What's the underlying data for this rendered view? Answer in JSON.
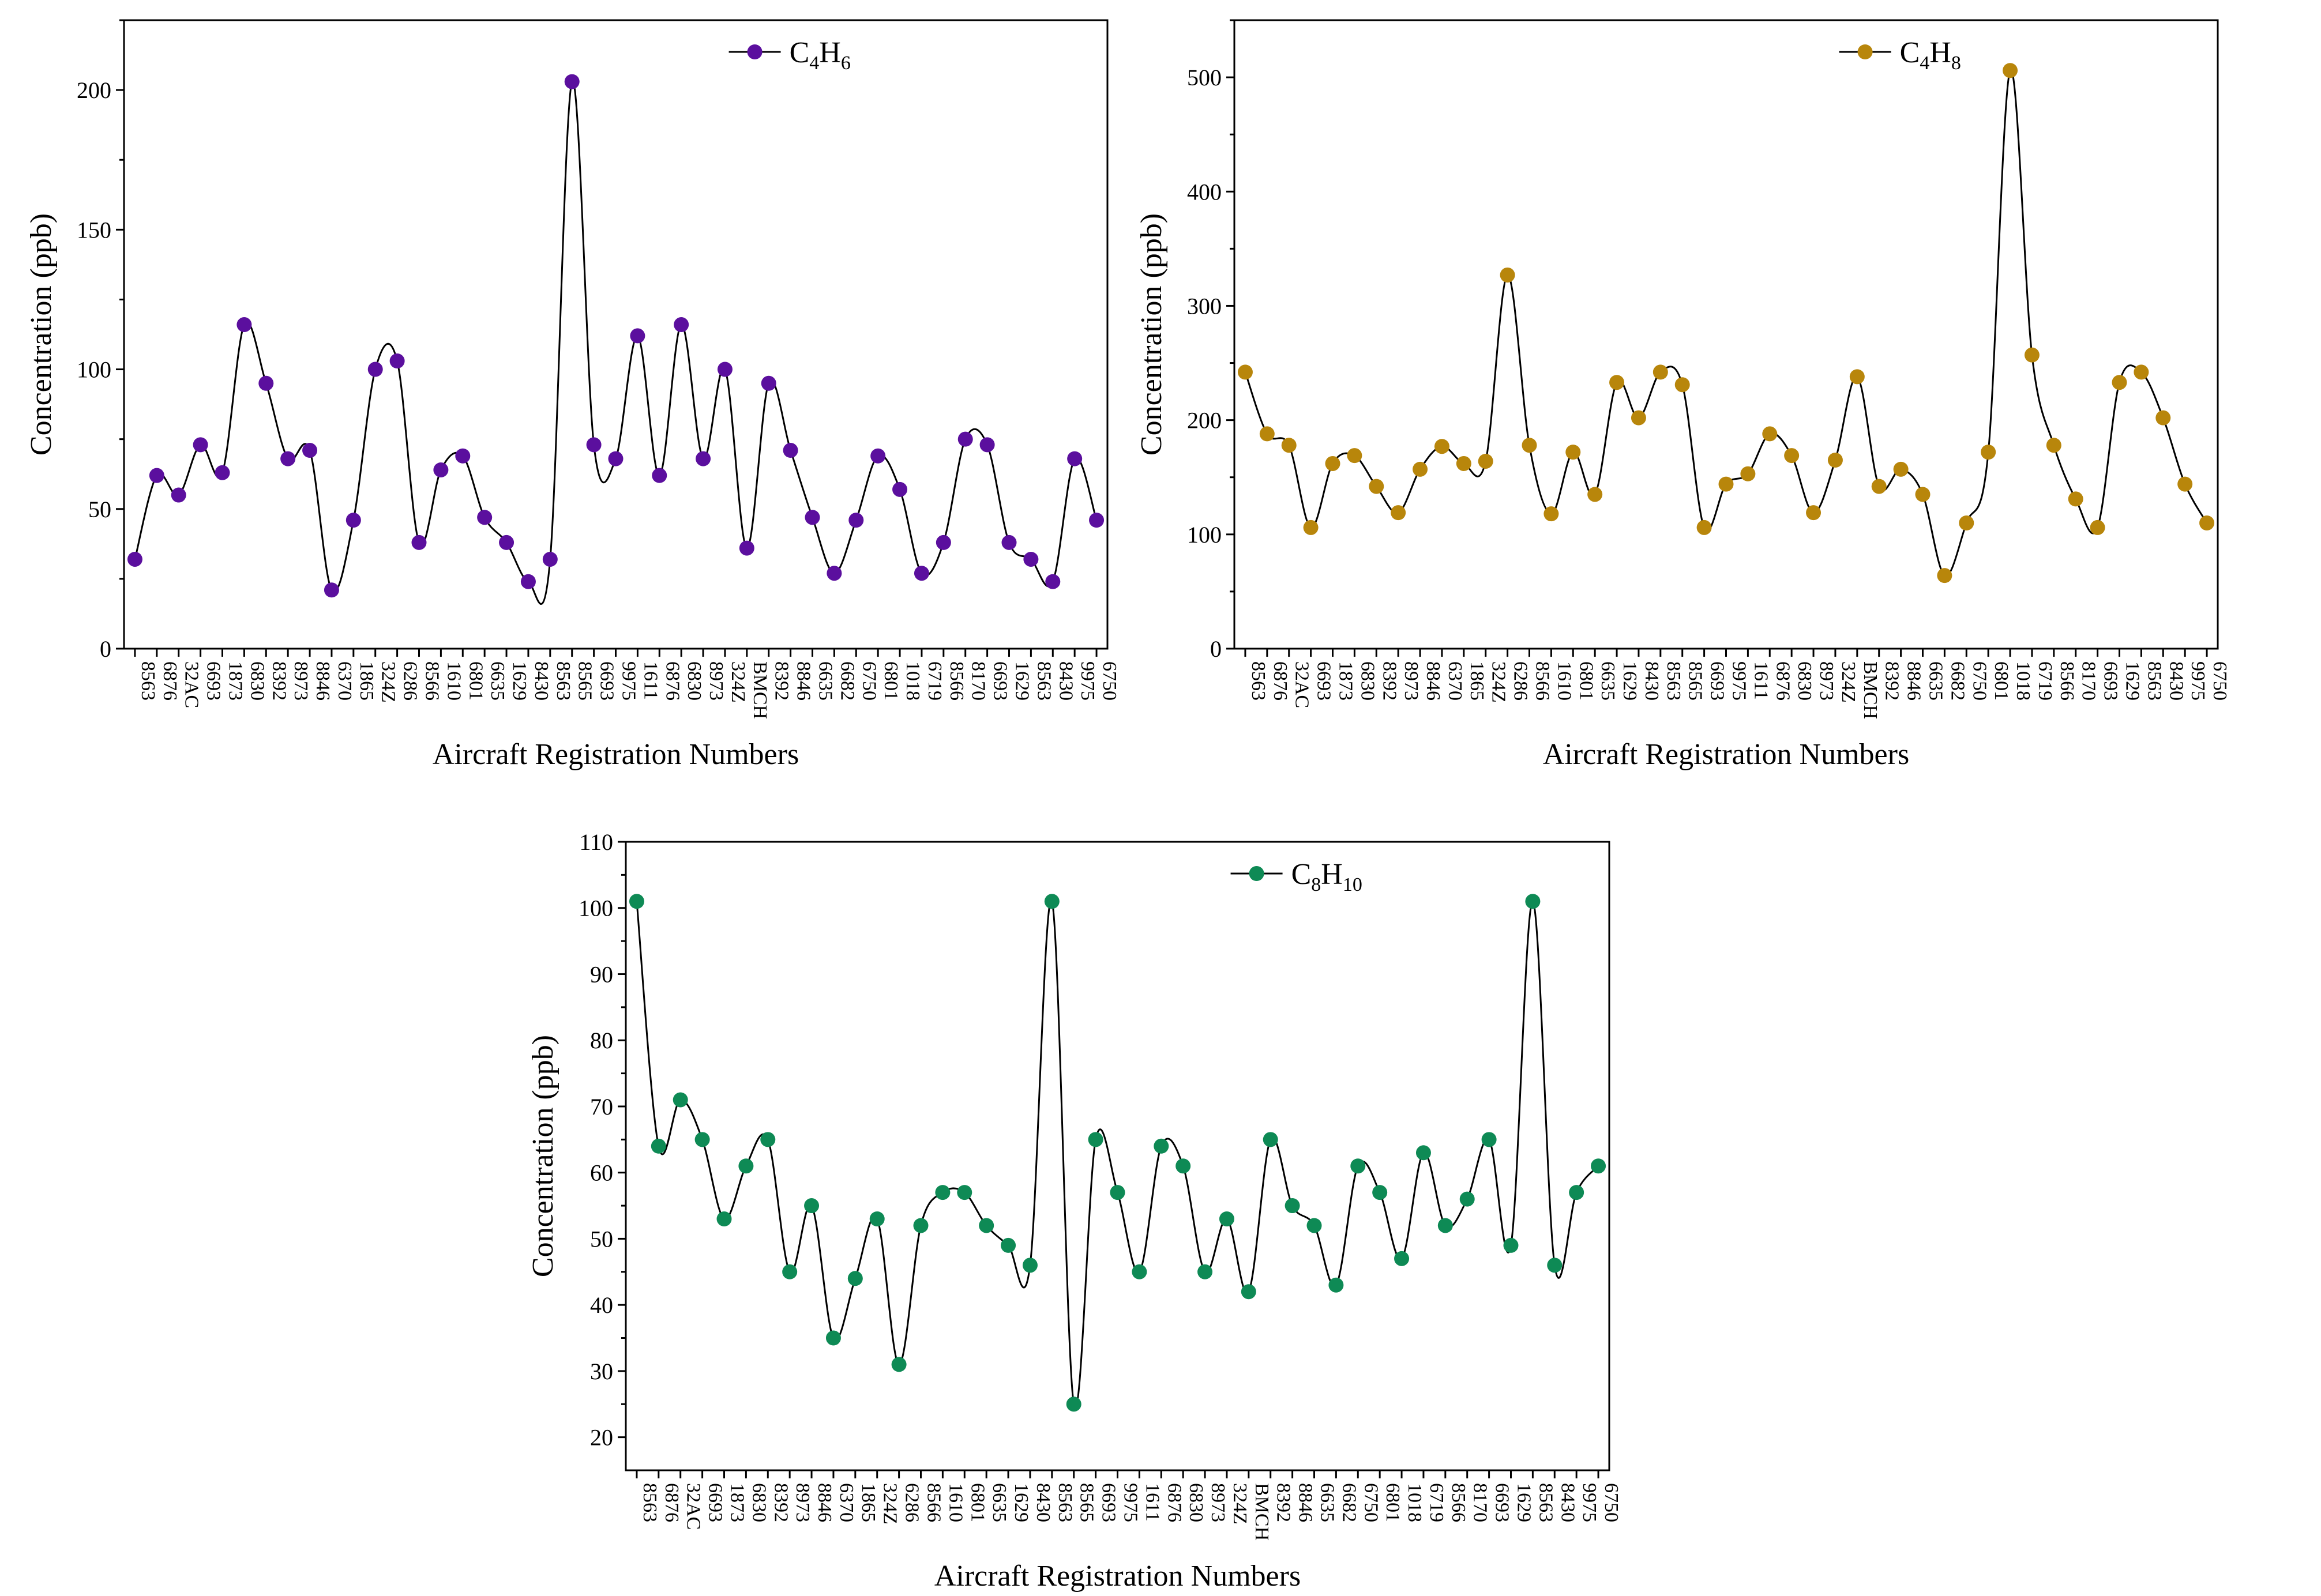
{
  "figure": {
    "x_axis_title": "Aircraft Registration Numbers",
    "y_axis_title": "Concentration (ppb)"
  },
  "chart_data": [
    {
      "type": "line",
      "series_name": "C4H6",
      "legend": {
        "base1": "C",
        "sub1": "4",
        "base2": "H",
        "sub2": "6"
      },
      "color": "#5b0f9e",
      "xlabel": "Aircraft Registration Numbers",
      "ylabel": "Concentration (ppb)",
      "ylim": [
        0,
        225
      ],
      "yticks": [
        0,
        50,
        100,
        150,
        200
      ],
      "categories": [
        "8563",
        "6876",
        "32AC",
        "6693",
        "1873",
        "6830",
        "8392",
        "8973",
        "8846",
        "6370",
        "1865",
        "324Z",
        "6286",
        "8566",
        "1610",
        "6801",
        "6635",
        "1629",
        "8430",
        "8563",
        "8565",
        "6693",
        "9975",
        "1611",
        "6876",
        "6830",
        "8973",
        "324Z",
        "BMCH",
        "8392",
        "8846",
        "6635",
        "6682",
        "6750",
        "6801",
        "1018",
        "6719",
        "8566",
        "8170",
        "6693",
        "1629",
        "8563",
        "8430",
        "9975",
        "6750"
      ],
      "values": [
        32,
        62,
        55,
        73,
        63,
        116,
        95,
        68,
        71,
        21,
        46,
        100,
        103,
        38,
        64,
        69,
        47,
        38,
        24,
        32,
        203,
        73,
        68,
        112,
        62,
        116,
        68,
        100,
        36,
        95,
        71,
        47,
        27,
        46,
        69,
        57,
        27,
        38,
        75,
        73,
        38,
        32,
        24,
        68,
        46
      ]
    },
    {
      "type": "line",
      "series_name": "C4H8",
      "legend": {
        "base1": "C",
        "sub1": "4",
        "base2": "H",
        "sub2": "8"
      },
      "color": "#b8860b",
      "xlabel": "Aircraft Registration Numbers",
      "ylabel": "Concentration (ppb)",
      "ylim": [
        0,
        550
      ],
      "yticks": [
        0,
        100,
        200,
        300,
        400,
        500
      ],
      "categories": [
        "8563",
        "6876",
        "32AC",
        "6693",
        "1873",
        "6830",
        "8392",
        "8973",
        "8846",
        "6370",
        "1865",
        "324Z",
        "6286",
        "8566",
        "1610",
        "6801",
        "6635",
        "1629",
        "8430",
        "8563",
        "8565",
        "6693",
        "9975",
        "1611",
        "6876",
        "6830",
        "8973",
        "324Z",
        "BMCH",
        "8392",
        "8846",
        "6635",
        "6682",
        "6750",
        "6801",
        "1018",
        "6719",
        "8566",
        "8170",
        "6693",
        "1629",
        "8563",
        "8430",
        "9975",
        "6750"
      ],
      "values": [
        242,
        188,
        178,
        106,
        162,
        169,
        142,
        119,
        157,
        177,
        162,
        164,
        327,
        178,
        118,
        172,
        135,
        233,
        202,
        242,
        231,
        106,
        144,
        153,
        188,
        169,
        119,
        165,
        238,
        142,
        157,
        135,
        64,
        110,
        172,
        506,
        257,
        178,
        131,
        106,
        233,
        242,
        202,
        144,
        110
      ]
    },
    {
      "type": "line",
      "series_name": "C8H10",
      "legend": {
        "base1": "C",
        "sub1": "8",
        "base2": "H",
        "sub2": "10"
      },
      "color": "#0e8a55",
      "xlabel": "Aircraft Registration Numbers",
      "ylabel": "Concentration (ppb)",
      "ylim": [
        15,
        110
      ],
      "yticks": [
        20,
        30,
        40,
        50,
        60,
        70,
        80,
        90,
        100,
        110
      ],
      "categories": [
        "8563",
        "6876",
        "32AC",
        "6693",
        "1873",
        "6830",
        "8392",
        "8973",
        "8846",
        "6370",
        "1865",
        "324Z",
        "6286",
        "8566",
        "1610",
        "6801",
        "6635",
        "1629",
        "8430",
        "8563",
        "8565",
        "6693",
        "9975",
        "1611",
        "6876",
        "6830",
        "8973",
        "324Z",
        "BMCH",
        "8392",
        "8846",
        "6635",
        "6682",
        "6750",
        "6801",
        "1018",
        "6719",
        "8566",
        "8170",
        "6693",
        "1629",
        "8563",
        "8430",
        "9975",
        "6750"
      ],
      "values": [
        101,
        64,
        71,
        65,
        53,
        61,
        65,
        45,
        55,
        35,
        44,
        53,
        31,
        52,
        57,
        57,
        52,
        49,
        46,
        101,
        25,
        65,
        57,
        45,
        64,
        61,
        45,
        53,
        42,
        65,
        55,
        52,
        43,
        61,
        57,
        47,
        63,
        52,
        56,
        65,
        49,
        101,
        46,
        57,
        61
      ]
    }
  ]
}
